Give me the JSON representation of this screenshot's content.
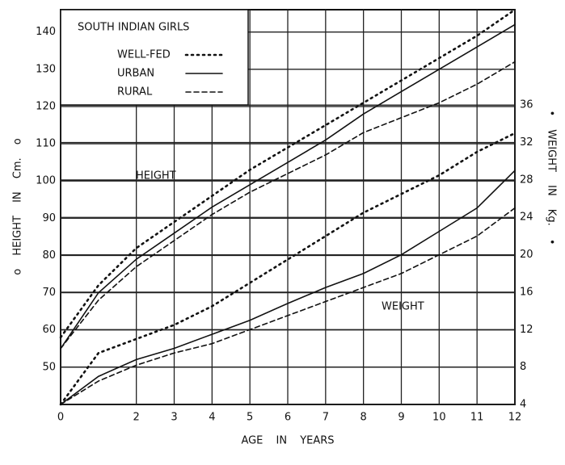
{
  "chart_data": {
    "type": "line",
    "legend_title": "SOUTH INDIAN GIRLS",
    "xlabel": "AGE IN YEARS",
    "ylabel": "o HEIGHT IN Cm. o",
    "y2label": "• WEIGHT IN Kg. •",
    "annotations": [
      "HEIGHT",
      "WEIGHT"
    ],
    "x": [
      0,
      1,
      2,
      3,
      4,
      5,
      6,
      7,
      8,
      9,
      10,
      11,
      12
    ],
    "xlim": [
      0,
      12
    ],
    "xticks": [
      0,
      2,
      3,
      4,
      5,
      6,
      7,
      8,
      9,
      10,
      11,
      12
    ],
    "ylim": [
      40,
      146
    ],
    "yticks": [
      50,
      60,
      70,
      80,
      90,
      100,
      110,
      120,
      130,
      140
    ],
    "y2lim": [
      4,
      46.2
    ],
    "y2ticks": [
      4,
      8,
      12,
      16,
      20,
      24,
      28,
      32,
      36
    ],
    "grid": true,
    "legend": "upper left",
    "series": [
      {
        "name": "WELL-FED",
        "color": "#111",
        "style": "dotted",
        "values": [
          58,
          72,
          82,
          89,
          96,
          103,
          109,
          115,
          121,
          127,
          133,
          139,
          146
        ]
      },
      {
        "name": "URBAN",
        "color": "#111",
        "style": "solid",
        "values": [
          55,
          70,
          79,
          86,
          93,
          99,
          105,
          111,
          118,
          124,
          130,
          136,
          142
        ]
      },
      {
        "name": "RURAL",
        "color": "#111",
        "style": "dashed",
        "values": [
          55,
          68,
          77,
          84,
          91,
          97,
          102,
          107,
          113,
          117,
          121,
          126,
          132
        ]
      },
      {
        "axis": "y2",
        "color": "#111",
        "style": "dotted",
        "values": [
          4,
          9.5,
          11,
          12.5,
          14.5,
          17,
          19.5,
          22,
          24.5,
          26.5,
          28.5,
          31,
          33
        ]
      },
      {
        "axis": "y2",
        "color": "#111",
        "style": "solid",
        "values": [
          4,
          7,
          8.8,
          10,
          11.5,
          13,
          14.8,
          16.5,
          18,
          20,
          22.5,
          25,
          29
        ]
      },
      {
        "axis": "y2",
        "color": "#111",
        "style": "dashed",
        "values": [
          4,
          6.5,
          8.2,
          9.5,
          10.5,
          12,
          13.5,
          15,
          16.5,
          18,
          20,
          22,
          25
        ]
      }
    ]
  }
}
